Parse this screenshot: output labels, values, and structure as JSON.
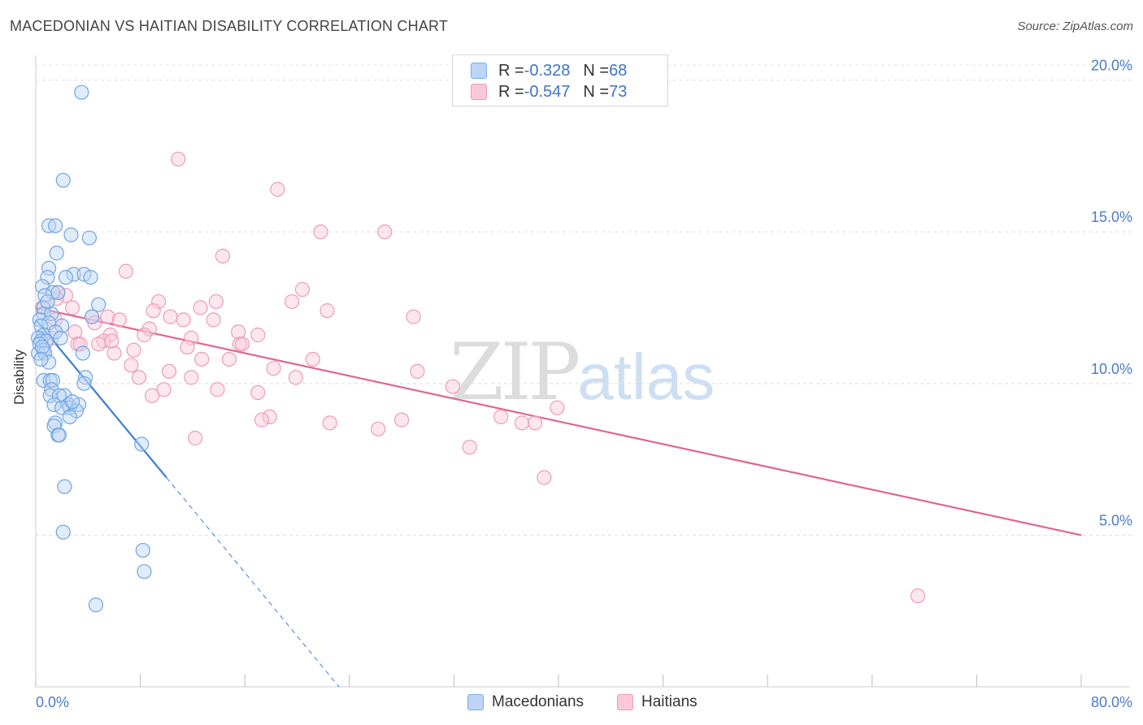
{
  "title": "MACEDONIAN VS HAITIAN DISABILITY CORRELATION CHART",
  "source": "Source: ZipAtlas.com",
  "watermark": {
    "zip": "ZIP",
    "atlas": "atlas"
  },
  "legend": {
    "macedonians": {
      "r_label": "R = ",
      "r_value": "-0.328",
      "n_label": "N = ",
      "n_value": "68",
      "name": "Macedonians",
      "color": "#7baee8",
      "fill": "#bcd5f5"
    },
    "haitians": {
      "r_label": "R = ",
      "r_value": "-0.547",
      "n_label": "N = ",
      "n_value": "73",
      "name": "Haitians",
      "color": "#ef9ab8",
      "fill": "#f9c9da"
    }
  },
  "chart_data": {
    "type": "scatter",
    "title": "MACEDONIAN VS HAITIAN DISABILITY CORRELATION CHART",
    "xlabel": "",
    "ylabel": "Disability",
    "xlim": [
      0,
      80
    ],
    "ylim": [
      0,
      20.5
    ],
    "x_tick_labels": [
      {
        "value": 0,
        "label": "0.0%"
      },
      {
        "value": 80,
        "label": "80.0%"
      }
    ],
    "y_ticks": [
      {
        "value": 5,
        "label": "5.0%"
      },
      {
        "value": 10,
        "label": "10.0%"
      },
      {
        "value": 15,
        "label": "15.0%"
      },
      {
        "value": 20,
        "label": "20.0%"
      }
    ],
    "series": [
      {
        "name": "Macedonians",
        "color": "#3a7fd5",
        "points": [
          [
            3.5,
            19.6
          ],
          [
            2.1,
            16.7
          ],
          [
            1.0,
            15.2
          ],
          [
            1.5,
            15.2
          ],
          [
            2.7,
            14.9
          ],
          [
            4.1,
            14.8
          ],
          [
            1.6,
            14.3
          ],
          [
            1.0,
            13.8
          ],
          [
            2.9,
            13.6
          ],
          [
            0.9,
            13.5
          ],
          [
            3.7,
            13.6
          ],
          [
            2.3,
            13.5
          ],
          [
            4.2,
            13.5
          ],
          [
            0.5,
            13.2
          ],
          [
            1.3,
            13.0
          ],
          [
            1.7,
            13.0
          ],
          [
            0.7,
            12.9
          ],
          [
            4.8,
            12.6
          ],
          [
            0.6,
            12.5
          ],
          [
            0.6,
            12.3
          ],
          [
            1.2,
            12.3
          ],
          [
            4.3,
            12.2
          ],
          [
            0.3,
            12.1
          ],
          [
            1.0,
            12.0
          ],
          [
            0.4,
            11.9
          ],
          [
            2.0,
            11.9
          ],
          [
            1.5,
            11.7
          ],
          [
            0.6,
            11.6
          ],
          [
            0.2,
            11.5
          ],
          [
            0.4,
            11.4
          ],
          [
            0.8,
            11.4
          ],
          [
            0.3,
            11.3
          ],
          [
            0.6,
            11.1
          ],
          [
            0.2,
            11.0
          ],
          [
            0.7,
            11.0
          ],
          [
            3.6,
            11.0
          ],
          [
            1.0,
            10.7
          ],
          [
            3.8,
            10.2
          ],
          [
            0.6,
            10.1
          ],
          [
            1.1,
            10.1
          ],
          [
            1.3,
            10.1
          ],
          [
            3.7,
            10.0
          ],
          [
            1.2,
            9.8
          ],
          [
            2.2,
            9.6
          ],
          [
            1.1,
            9.6
          ],
          [
            1.8,
            9.6
          ],
          [
            2.5,
            9.3
          ],
          [
            1.4,
            9.3
          ],
          [
            2.6,
            9.2
          ],
          [
            3.3,
            9.3
          ],
          [
            2.0,
            9.2
          ],
          [
            3.1,
            9.1
          ],
          [
            2.6,
            8.9
          ],
          [
            1.5,
            8.7
          ],
          [
            1.4,
            8.6
          ],
          [
            1.7,
            8.3
          ],
          [
            1.8,
            8.3
          ],
          [
            8.1,
            8.0
          ],
          [
            2.2,
            6.6
          ],
          [
            2.1,
            5.1
          ],
          [
            8.2,
            4.5
          ],
          [
            8.3,
            3.8
          ],
          [
            4.6,
            2.7
          ],
          [
            0.5,
            11.2
          ],
          [
            0.9,
            12.7
          ],
          [
            1.9,
            11.5
          ],
          [
            0.4,
            10.8
          ],
          [
            2.8,
            9.4
          ]
        ],
        "trend": {
          "x_start": 0.0,
          "y_start": 12.1,
          "x_end_solid": 10.0,
          "y_end_solid": 6.9,
          "x_end_dashed": 23.2,
          "y_end_dashed": 0.0
        }
      },
      {
        "name": "Haitians",
        "color": "#e0668f",
        "points": [
          [
            10.9,
            17.4
          ],
          [
            18.5,
            16.4
          ],
          [
            21.8,
            15.0
          ],
          [
            26.7,
            15.0
          ],
          [
            14.3,
            14.2
          ],
          [
            6.9,
            13.7
          ],
          [
            20.4,
            13.1
          ],
          [
            1.7,
            13.0
          ],
          [
            2.3,
            12.9
          ],
          [
            1.6,
            12.8
          ],
          [
            13.8,
            12.7
          ],
          [
            9.4,
            12.7
          ],
          [
            19.6,
            12.7
          ],
          [
            12.6,
            12.5
          ],
          [
            2.8,
            12.5
          ],
          [
            0.5,
            12.5
          ],
          [
            22.3,
            12.4
          ],
          [
            28.9,
            12.2
          ],
          [
            5.5,
            12.2
          ],
          [
            4.3,
            12.2
          ],
          [
            1.5,
            12.1
          ],
          [
            10.3,
            12.2
          ],
          [
            11.3,
            12.1
          ],
          [
            13.6,
            12.1
          ],
          [
            6.4,
            12.1
          ],
          [
            4.5,
            12.0
          ],
          [
            8.7,
            11.8
          ],
          [
            15.5,
            11.7
          ],
          [
            3.0,
            11.7
          ],
          [
            5.7,
            11.6
          ],
          [
            8.3,
            11.6
          ],
          [
            17.0,
            11.6
          ],
          [
            11.9,
            11.5
          ],
          [
            1.2,
            11.5
          ],
          [
            5.2,
            11.4
          ],
          [
            4.8,
            11.3
          ],
          [
            3.2,
            11.3
          ],
          [
            3.4,
            11.3
          ],
          [
            15.6,
            11.3
          ],
          [
            15.8,
            11.3
          ],
          [
            11.6,
            11.2
          ],
          [
            7.5,
            11.1
          ],
          [
            6.0,
            11.0
          ],
          [
            12.7,
            10.8
          ],
          [
            14.8,
            10.8
          ],
          [
            21.2,
            10.8
          ],
          [
            7.3,
            10.6
          ],
          [
            18.2,
            10.5
          ],
          [
            10.2,
            10.4
          ],
          [
            29.2,
            10.4
          ],
          [
            11.9,
            10.2
          ],
          [
            19.9,
            10.2
          ],
          [
            7.9,
            10.2
          ],
          [
            31.9,
            9.9
          ],
          [
            9.8,
            9.8
          ],
          [
            13.9,
            9.8
          ],
          [
            17.0,
            9.7
          ],
          [
            8.9,
            9.6
          ],
          [
            39.9,
            9.2
          ],
          [
            35.6,
            8.9
          ],
          [
            28.0,
            8.8
          ],
          [
            17.9,
            8.9
          ],
          [
            17.3,
            8.8
          ],
          [
            22.5,
            8.7
          ],
          [
            37.2,
            8.7
          ],
          [
            38.2,
            8.7
          ],
          [
            26.2,
            8.5
          ],
          [
            12.2,
            8.2
          ],
          [
            33.2,
            7.9
          ],
          [
            38.9,
            6.9
          ],
          [
            67.5,
            3.0
          ],
          [
            5.8,
            11.4
          ],
          [
            9.0,
            12.4
          ]
        ],
        "trend": {
          "x_start": 0.0,
          "y_start": 12.5,
          "x_end": 80.0,
          "y_end": 5.0
        }
      }
    ]
  }
}
